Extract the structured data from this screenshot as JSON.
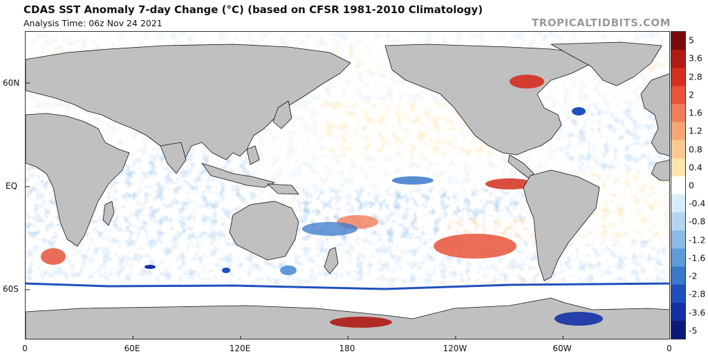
{
  "header": {
    "title": "CDAS SST Anomaly 7-day Change (°C) (based on CFSR 1981-2010 Climatology)",
    "analysis_time": "Analysis Time: 06z Nov 24 2021",
    "credit": "TROPICALTIDBITS.COM"
  },
  "map": {
    "projection": "equirectangular",
    "center_longitude": 180,
    "lat_labels": [
      "60N",
      "EQ",
      "60S"
    ],
    "lon_labels": [
      "0",
      "60E",
      "120E",
      "180",
      "120W",
      "60W",
      "0"
    ],
    "land_color": "#c0c0c0",
    "coastline_color": "#000000"
  },
  "colorbar": {
    "labels": [
      "5",
      "3.6",
      "2.8",
      "2",
      "1.6",
      "1.2",
      "0.8",
      "0.4",
      "0",
      "-0.4",
      "-0.8",
      "-1.2",
      "-1.6",
      "-2",
      "-2.8",
      "-3.6",
      "-5"
    ],
    "colors": [
      "#7a0a0a",
      "#b01a14",
      "#d42f1f",
      "#e8533a",
      "#f27d5a",
      "#f7a574",
      "#fac991",
      "#fde3ad",
      "#ffffff",
      "#d9ecfa",
      "#b4d5f2",
      "#8bbbe7",
      "#5f9bd9",
      "#3a78ca",
      "#1f4fbd",
      "#1430a6",
      "#0a1a7a"
    ]
  }
}
